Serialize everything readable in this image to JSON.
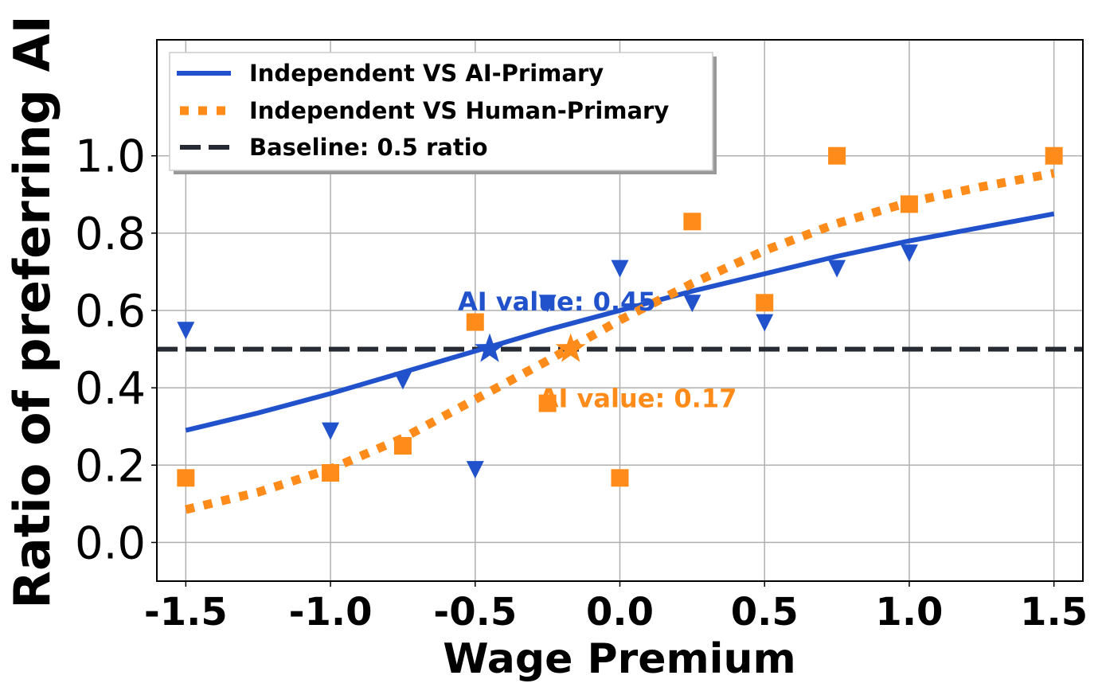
{
  "chart_data": {
    "type": "scatter",
    "xlabel": "Wage Premium",
    "ylabel": "Ratio of preferring AI",
    "xlim": [
      -1.6,
      1.6
    ],
    "ylim": [
      -0.1,
      1.3
    ],
    "x_ticks": [
      "-1.5",
      "-1.0",
      "-0.5",
      "0.0",
      "0.5",
      "1.0",
      "1.5"
    ],
    "x_tick_values": [
      -1.5,
      -1.0,
      -0.5,
      0.0,
      0.5,
      1.0,
      1.5
    ],
    "y_ticks": [
      "0.0",
      "0.2",
      "0.4",
      "0.6",
      "0.8",
      "1.0"
    ],
    "y_tick_values": [
      0.0,
      0.2,
      0.4,
      0.6,
      0.8,
      1.0
    ],
    "grid": true,
    "legend_position": "top-left",
    "series": [
      {
        "name": "Independent VS AI-Primary",
        "color": "#2152cc",
        "marker": "triangle-down",
        "points": [
          [
            -1.5,
            0.55
          ],
          [
            -1.0,
            0.29
          ],
          [
            -0.75,
            0.42
          ],
          [
            -0.5,
            0.19
          ],
          [
            -0.25,
            0.62
          ],
          [
            0.0,
            0.71
          ],
          [
            0.25,
            0.62
          ],
          [
            0.5,
            0.57
          ],
          [
            0.75,
            0.71
          ],
          [
            1.0,
            0.75
          ]
        ],
        "fit": [
          [
            -1.5,
            0.29
          ],
          [
            -1.25,
            0.335
          ],
          [
            -1.0,
            0.385
          ],
          [
            -0.75,
            0.44
          ],
          [
            -0.5,
            0.495
          ],
          [
            -0.25,
            0.55
          ],
          [
            0.0,
            0.6
          ],
          [
            0.25,
            0.65
          ],
          [
            0.5,
            0.695
          ],
          [
            0.75,
            0.74
          ],
          [
            1.0,
            0.78
          ],
          [
            1.25,
            0.815
          ],
          [
            1.5,
            0.85
          ]
        ],
        "line_style": "solid"
      },
      {
        "name": "Independent VS Human-Primary",
        "color": "#ff8c1a",
        "marker": "square",
        "points": [
          [
            -1.5,
            0.167
          ],
          [
            -1.0,
            0.18
          ],
          [
            -0.75,
            0.25
          ],
          [
            -0.5,
            0.57
          ],
          [
            -0.25,
            0.36
          ],
          [
            0.0,
            0.167
          ],
          [
            0.25,
            0.83
          ],
          [
            0.5,
            0.62
          ],
          [
            0.75,
            1.0
          ],
          [
            1.0,
            0.875
          ],
          [
            1.5,
            1.0
          ]
        ],
        "fit": [
          [
            -1.5,
            0.085
          ],
          [
            -1.25,
            0.13
          ],
          [
            -1.0,
            0.19
          ],
          [
            -0.75,
            0.27
          ],
          [
            -0.5,
            0.37
          ],
          [
            -0.25,
            0.47
          ],
          [
            0.0,
            0.575
          ],
          [
            0.25,
            0.67
          ],
          [
            0.5,
            0.755
          ],
          [
            0.75,
            0.825
          ],
          [
            1.0,
            0.88
          ],
          [
            1.25,
            0.92
          ],
          [
            1.5,
            0.955
          ]
        ],
        "line_style": "dotted"
      },
      {
        "name": "Baseline: 0.5 ratio",
        "color": "#262a33",
        "line_style": "dashed",
        "y": 0.5
      }
    ],
    "stars": [
      {
        "x": -0.45,
        "y": 0.5,
        "color": "#2152cc"
      },
      {
        "x": -0.17,
        "y": 0.5,
        "color": "#ff8c1a"
      }
    ],
    "annotations": [
      {
        "text": "AI value: 0.45",
        "x": -0.56,
        "y": 0.625,
        "color": "#2152cc"
      },
      {
        "text": "AI value: 0.17",
        "x": -0.28,
        "y": 0.375,
        "color": "#ff8c1a"
      }
    ]
  }
}
